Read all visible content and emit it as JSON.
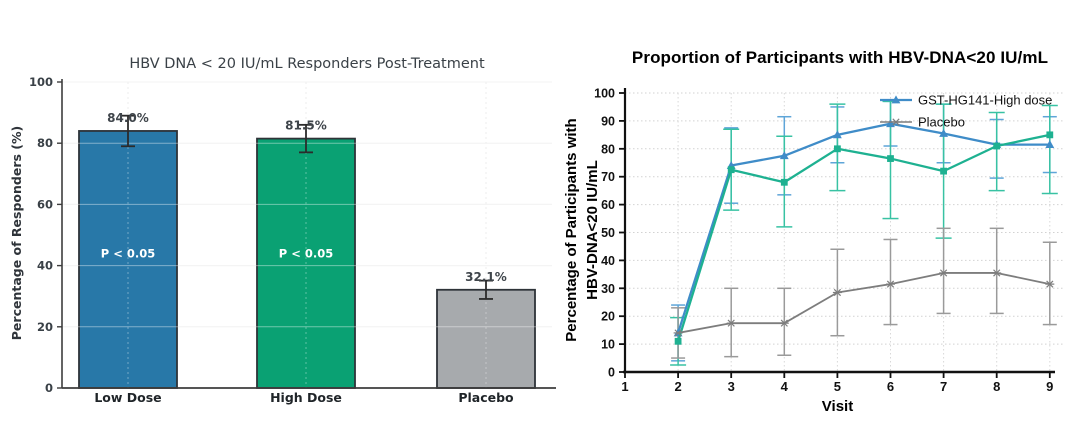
{
  "page": {
    "background": "#ffffff"
  },
  "chart_data": [
    {
      "type": "bar",
      "title": "HBV DNA < 20 IU/mL Responders Post-Treatment",
      "ylabel": "Percentage of Responders (%)",
      "xlabel": "",
      "categories": [
        "Low Dose",
        "High Dose",
        "Placebo"
      ],
      "values": [
        84.0,
        81.5,
        32.1
      ],
      "value_labels": [
        "84.0%",
        "81.5%",
        "32.1%"
      ],
      "errors": [
        5,
        4.5,
        3
      ],
      "bar_annotations": [
        "P < 0.05",
        "P < 0.05",
        ""
      ],
      "ylim": [
        0,
        100
      ],
      "yticks": [
        0,
        20,
        40,
        60,
        80,
        100
      ],
      "grid": "on",
      "legend": "none",
      "bar_colors": [
        "#2878a8",
        "#0aa173",
        "#a7aaad"
      ],
      "bar_edge_color": "#2e3338",
      "error_color": "#2b2b2b",
      "annotation_text_color": "#ffffff",
      "tick_color": "#3a4147"
    },
    {
      "type": "line",
      "title": "Proportion of Participants with HBV-DNA<20 IU/mL",
      "ylabel_lines": [
        "Percentage of Participants with",
        "HBV-DNA<20 IU/mL"
      ],
      "xlabel": "Visit",
      "x": [
        2,
        3,
        4,
        5,
        6,
        7,
        8,
        9
      ],
      "xticks": [
        1,
        2,
        3,
        4,
        5,
        6,
        7,
        8,
        9
      ],
      "xlim": [
        1,
        9.2
      ],
      "ylim": [
        0,
        100
      ],
      "yticks": [
        0,
        10,
        20,
        30,
        40,
        50,
        60,
        70,
        80,
        90,
        100
      ],
      "grid": "dotted",
      "legend_position": "top-right",
      "series": [
        {
          "name": "GST-HG141-High dose",
          "in_legend": true,
          "color": "#3f8cc8",
          "error_color": "#5ea5d8",
          "marker": "triangle",
          "values": [
            14,
            74,
            77.5,
            85,
            89,
            85.5,
            81.5,
            81.5
          ],
          "err_low": [
            10,
            13.5,
            14,
            10,
            8,
            10.5,
            12,
            10
          ],
          "err_high": [
            10,
            13.5,
            14,
            10,
            8,
            10.5,
            9,
            10
          ]
        },
        {
          "name": "",
          "in_legend": false,
          "color": "#1eb191",
          "error_color": "#38c2a3",
          "marker": "square",
          "values": [
            11,
            72.5,
            68,
            80,
            76.5,
            72,
            81,
            85
          ],
          "err_low": [
            8.5,
            14.5,
            16,
            15,
            21.5,
            24,
            16,
            21
          ],
          "err_high": [
            8.5,
            14.5,
            16.5,
            16,
            20.5,
            24,
            12,
            10.5
          ]
        },
        {
          "name": "Placebo",
          "in_legend": true,
          "color": "#7d7d7d",
          "error_color": "#9a9a9a",
          "marker": "star",
          "values": [
            14,
            17.5,
            17.5,
            28.5,
            31.5,
            35.5,
            35.5,
            31.5
          ],
          "err_low": [
            9,
            12,
            11.5,
            15.5,
            14.5,
            14.5,
            14.5,
            14.5
          ],
          "err_high": [
            9,
            12.5,
            12.5,
            15.5,
            16,
            16,
            16,
            15
          ]
        }
      ]
    }
  ]
}
